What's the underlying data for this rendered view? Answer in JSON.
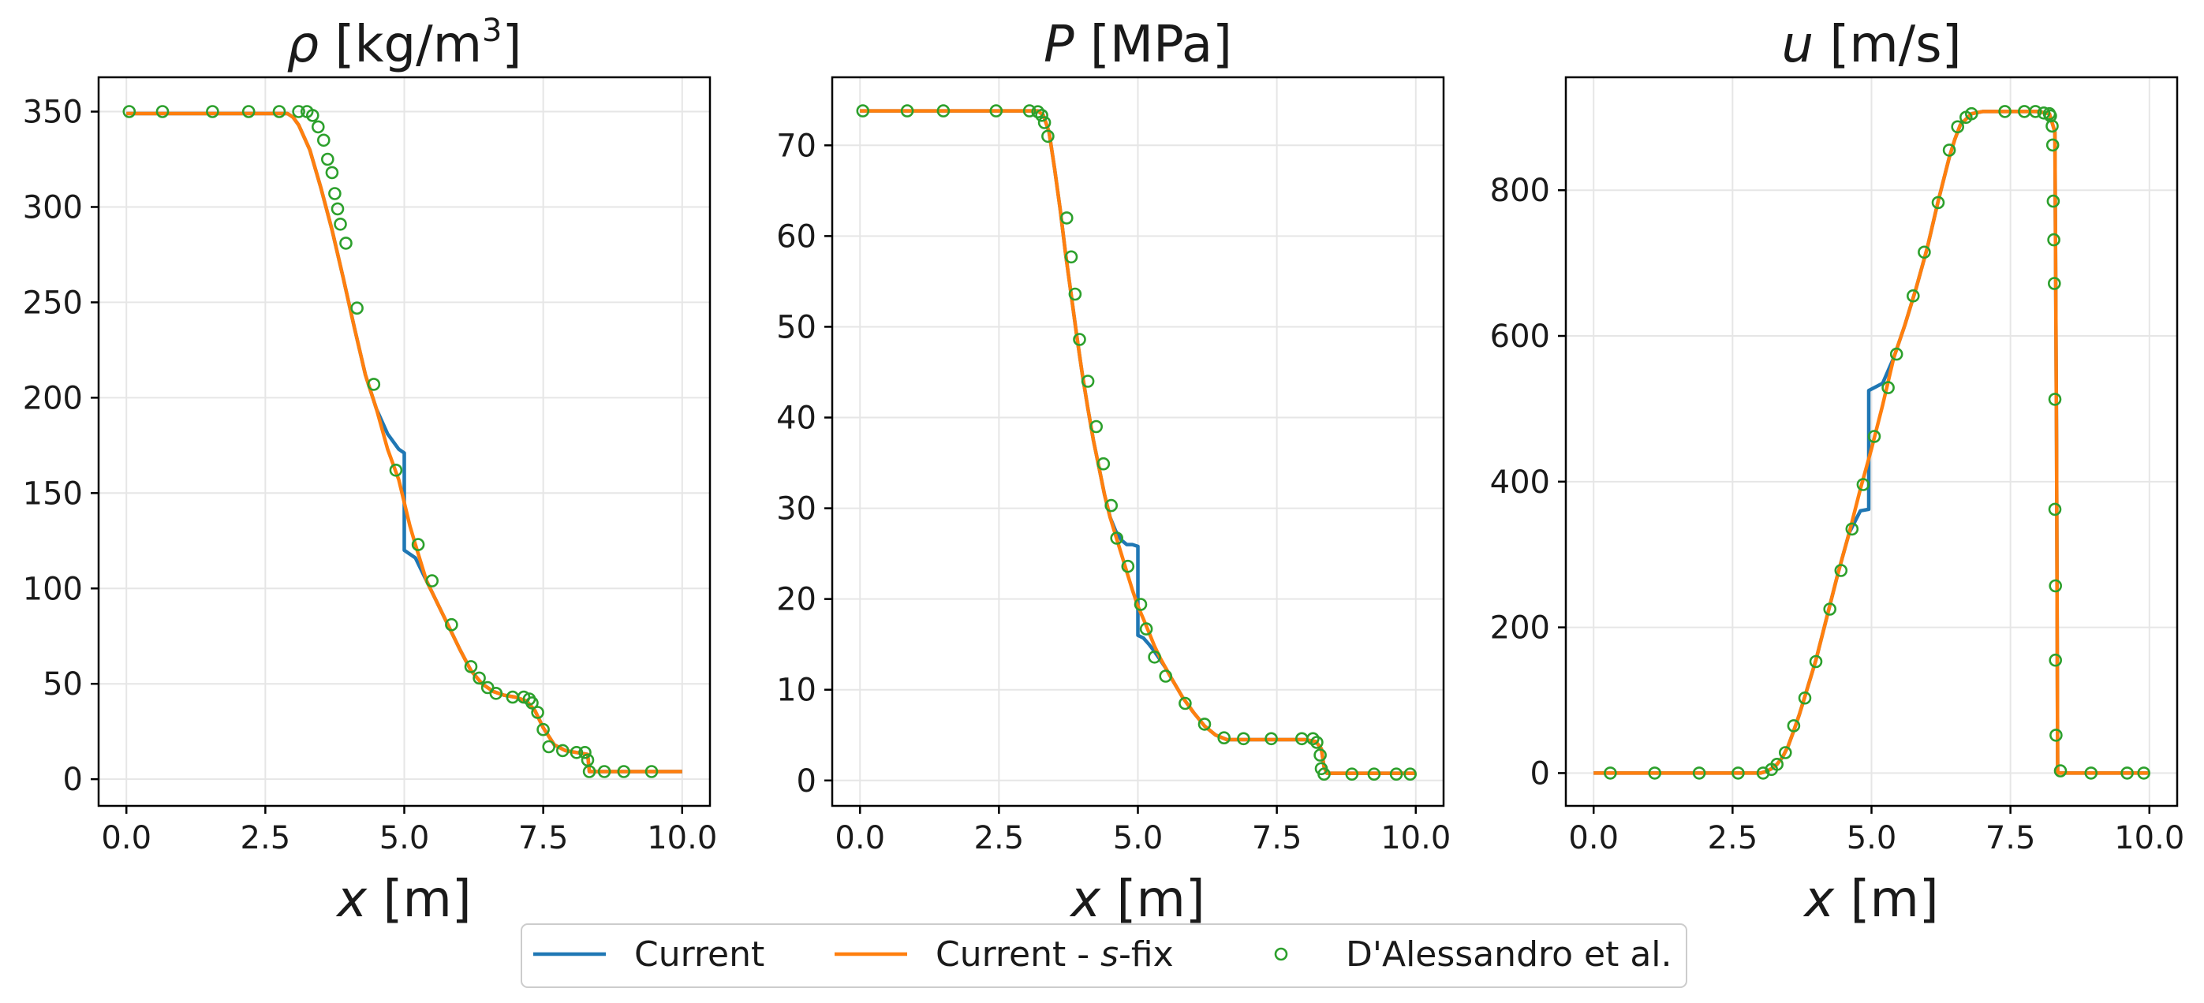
{
  "chart_data": [
    {
      "type": "line",
      "title": {
        "symbol": "ρ",
        "unit": "[kg/m",
        "sup": "3",
        "close": "]"
      },
      "xlabel": {
        "symbol": "x",
        "unit": "[m]"
      },
      "xlim": [
        -0.5,
        10.5
      ],
      "ylim": [
        -14,
        368
      ],
      "xticks": [
        0,
        2.5,
        5,
        7.5,
        10
      ],
      "xticklabels": [
        "0.0",
        "2.5",
        "5.0",
        "7.5",
        "10.0"
      ],
      "yticks": [
        0,
        50,
        100,
        150,
        200,
        250,
        300,
        350
      ],
      "yticklabels": [
        "0",
        "50",
        "100",
        "150",
        "200",
        "250",
        "300",
        "350"
      ],
      "grid": true,
      "series": [
        {
          "name": "Current",
          "color": "#1f77b4",
          "style": "line",
          "x": [
            0,
            2.9,
            3.0,
            3.1,
            3.3,
            3.5,
            3.7,
            3.9,
            4.1,
            4.3,
            4.5,
            4.7,
            4.9,
            5.0,
            5.0,
            5.2,
            5.4,
            5.6,
            5.8,
            6.0,
            6.2,
            6.4,
            6.6,
            6.8,
            7.0,
            7.2,
            7.35,
            7.5,
            7.7,
            7.9,
            8.1,
            8.3,
            8.33,
            8.4,
            10.0
          ],
          "y": [
            349,
            349,
            347,
            343,
            330,
            310,
            288,
            263,
            237,
            212,
            194,
            181,
            173,
            171,
            120,
            116,
            104,
            92,
            80,
            68,
            57,
            50,
            46,
            44,
            43,
            41,
            36,
            27,
            18,
            15,
            14,
            13,
            4,
            4,
            4
          ]
        },
        {
          "name": "Current - s-fix",
          "color": "#ff7f0e",
          "style": "line",
          "x": [
            0,
            2.9,
            3.0,
            3.1,
            3.3,
            3.5,
            3.7,
            3.9,
            4.1,
            4.3,
            4.5,
            4.7,
            4.9,
            5.0,
            5.1,
            5.2,
            5.4,
            5.6,
            5.8,
            6.0,
            6.2,
            6.4,
            6.6,
            6.8,
            7.0,
            7.2,
            7.35,
            7.5,
            7.7,
            7.9,
            8.1,
            8.3,
            8.33,
            8.4,
            10.0
          ],
          "y": [
            349,
            349,
            347,
            343,
            330,
            310,
            288,
            263,
            237,
            212,
            194,
            173,
            157,
            145,
            133,
            123,
            104,
            92,
            80,
            68,
            57,
            50,
            46,
            44,
            43,
            41,
            36,
            27,
            18,
            15,
            14,
            13,
            4,
            4,
            4
          ]
        },
        {
          "name": "D'Alessandro et al.",
          "color": "#2ca02c",
          "style": "markers",
          "x": [
            0.05,
            0.65,
            1.55,
            2.2,
            2.75,
            3.1,
            3.25,
            3.35,
            3.45,
            3.55,
            3.62,
            3.7,
            3.75,
            3.8,
            3.85,
            3.95,
            4.15,
            4.45,
            4.85,
            5.25,
            5.5,
            5.85,
            6.2,
            6.35,
            6.5,
            6.65,
            6.95,
            7.15,
            7.25,
            7.3,
            7.4,
            7.5,
            7.6,
            7.85,
            8.1,
            8.25,
            8.3,
            8.33,
            8.6,
            8.95,
            9.45
          ],
          "y": [
            350,
            350,
            350,
            350,
            350,
            350,
            350,
            348,
            342,
            335,
            325,
            318,
            307,
            299,
            291,
            281,
            247,
            207,
            162,
            123,
            104,
            81,
            59,
            53,
            48,
            45,
            43,
            43,
            42,
            40,
            35,
            26,
            17,
            15,
            14,
            14,
            10,
            4,
            4,
            4,
            4
          ]
        }
      ]
    },
    {
      "type": "line",
      "title": {
        "symbol": "P",
        "unit": "[MPa]"
      },
      "xlabel": {
        "symbol": "x",
        "unit": "[m]"
      },
      "xlim": [
        -0.5,
        10.5
      ],
      "ylim": [
        -2.8,
        77.5
      ],
      "xticks": [
        0,
        2.5,
        5,
        7.5,
        10
      ],
      "xticklabels": [
        "0.0",
        "2.5",
        "5.0",
        "7.5",
        "10.0"
      ],
      "yticks": [
        0,
        10,
        20,
        30,
        40,
        50,
        60,
        70
      ],
      "yticklabels": [
        "0",
        "10",
        "20",
        "30",
        "40",
        "50",
        "60",
        "70"
      ],
      "grid": true,
      "series": [
        {
          "name": "Current",
          "color": "#1f77b4",
          "style": "line",
          "x": [
            0,
            3.2,
            3.3,
            3.4,
            3.5,
            3.6,
            3.7,
            3.8,
            3.9,
            4.0,
            4.1,
            4.2,
            4.3,
            4.4,
            4.5,
            4.6,
            4.7,
            4.8,
            4.9,
            5.0,
            5.0,
            5.1,
            5.2,
            5.3,
            5.4,
            5.5,
            5.6,
            5.8,
            6.0,
            6.2,
            6.4,
            6.6,
            7.0,
            7.5,
            8.0,
            8.2,
            8.3,
            8.35,
            8.4,
            10.0
          ],
          "y": [
            73.8,
            73.8,
            73.3,
            71.5,
            67.5,
            63,
            58,
            53.5,
            49,
            44.8,
            41,
            37.5,
            34.5,
            31.5,
            29,
            27.5,
            26.5,
            26,
            26,
            25.8,
            16,
            15.7,
            15,
            14.2,
            13.3,
            12.4,
            11.3,
            9.2,
            7.5,
            6.0,
            5.0,
            4.5,
            4.5,
            4.5,
            4.5,
            4.3,
            3.5,
            1.5,
            0.8,
            0.8
          ]
        },
        {
          "name": "Current - s-fix",
          "color": "#ff7f0e",
          "style": "line",
          "x": [
            0,
            3.2,
            3.3,
            3.4,
            3.5,
            3.6,
            3.7,
            3.8,
            3.9,
            4.0,
            4.1,
            4.2,
            4.3,
            4.4,
            4.5,
            4.6,
            4.7,
            4.8,
            4.9,
            5.0,
            5.1,
            5.2,
            5.3,
            5.4,
            5.5,
            5.6,
            5.8,
            6.0,
            6.2,
            6.4,
            6.6,
            7.0,
            7.5,
            8.0,
            8.2,
            8.3,
            8.35,
            8.4,
            10.0
          ],
          "y": [
            73.8,
            73.8,
            73.3,
            71.5,
            67.5,
            63,
            58,
            53.5,
            49,
            44.8,
            41,
            37.5,
            34.5,
            31.5,
            29,
            27,
            25,
            23,
            21,
            19.2,
            17.8,
            16.3,
            14.8,
            13.5,
            12.4,
            11.3,
            9.2,
            7.5,
            6.0,
            5.0,
            4.5,
            4.5,
            4.5,
            4.5,
            4.3,
            3.5,
            1.5,
            0.8,
            0.8
          ]
        },
        {
          "name": "D'Alessandro et al.",
          "color": "#2ca02c",
          "style": "markers",
          "x": [
            0.05,
            0.85,
            1.5,
            2.45,
            3.05,
            3.2,
            3.27,
            3.32,
            3.38,
            3.72,
            3.8,
            3.87,
            3.95,
            4.1,
            4.25,
            4.38,
            4.52,
            4.62,
            4.82,
            5.05,
            5.15,
            5.3,
            5.5,
            5.85,
            6.2,
            6.55,
            6.9,
            7.4,
            7.95,
            8.15,
            8.22,
            8.28,
            8.3,
            8.35,
            8.85,
            9.25,
            9.65,
            9.9
          ],
          "y": [
            73.8,
            73.8,
            73.8,
            73.8,
            73.8,
            73.7,
            73.3,
            72.5,
            71,
            62,
            57.7,
            53.6,
            48.6,
            44,
            39,
            34.9,
            30.3,
            26.7,
            23.6,
            19.4,
            16.7,
            13.6,
            11.5,
            8.5,
            6.2,
            4.7,
            4.6,
            4.6,
            4.6,
            4.6,
            4.2,
            2.8,
            1.3,
            0.7,
            0.7,
            0.7,
            0.7,
            0.7
          ]
        }
      ]
    },
    {
      "type": "line",
      "title": {
        "symbol": "u",
        "unit": "[m/s]"
      },
      "xlabel": {
        "symbol": "x",
        "unit": "[m]"
      },
      "xlim": [
        -0.5,
        10.5
      ],
      "ylim": [
        -45,
        955
      ],
      "xticks": [
        0,
        2.5,
        5,
        7.5,
        10
      ],
      "xticklabels": [
        "0.0",
        "2.5",
        "5.0",
        "7.5",
        "10.0"
      ],
      "yticks": [
        0,
        200,
        400,
        600,
        800
      ],
      "yticklabels": [
        "0",
        "200",
        "400",
        "600",
        "800"
      ],
      "grid": true,
      "series": [
        {
          "name": "Current",
          "color": "#1f77b4",
          "style": "line",
          "x": [
            0,
            3.0,
            3.1,
            3.2,
            3.3,
            3.4,
            3.5,
            3.6,
            3.7,
            3.8,
            3.9,
            4.0,
            4.2,
            4.4,
            4.6,
            4.8,
            4.95,
            4.95,
            5.2,
            5.4,
            5.6,
            5.8,
            6.0,
            6.2,
            6.4,
            6.5,
            6.6,
            6.8,
            7.0,
            7.5,
            8.0,
            8.2,
            8.3,
            8.33,
            8.35,
            10.0
          ],
          "y": [
            0,
            0,
            2,
            6,
            12,
            22,
            37,
            58,
            80,
            105,
            130,
            155,
            215,
            275,
            330,
            360,
            362,
            525,
            535,
            570,
            615,
            665,
            720,
            785,
            845,
            870,
            890,
            905,
            908,
            908,
            908,
            905,
            880,
            450,
            0,
            0
          ]
        },
        {
          "name": "Current - s-fix",
          "color": "#ff7f0e",
          "style": "line",
          "x": [
            0,
            3.0,
            3.1,
            3.2,
            3.3,
            3.4,
            3.5,
            3.6,
            3.7,
            3.8,
            3.9,
            4.0,
            4.2,
            4.4,
            4.6,
            4.8,
            5.0,
            5.2,
            5.4,
            5.6,
            5.8,
            6.0,
            6.2,
            6.4,
            6.5,
            6.6,
            6.8,
            7.0,
            7.5,
            8.0,
            8.2,
            8.3,
            8.33,
            8.35,
            10.0
          ],
          "y": [
            0,
            0,
            2,
            6,
            12,
            22,
            37,
            58,
            80,
            105,
            130,
            155,
            215,
            275,
            330,
            390,
            445,
            505,
            570,
            615,
            665,
            720,
            785,
            845,
            870,
            890,
            905,
            908,
            908,
            908,
            905,
            880,
            450,
            0,
            0
          ]
        },
        {
          "name": "D'Alessandro et al.",
          "color": "#2ca02c",
          "style": "markers",
          "x": [
            0.3,
            1.1,
            1.9,
            2.6,
            3.05,
            3.2,
            3.3,
            3.45,
            3.6,
            3.8,
            4.0,
            4.25,
            4.45,
            4.65,
            4.85,
            5.05,
            5.3,
            5.45,
            5.75,
            5.95,
            6.2,
            6.4,
            6.55,
            6.7,
            6.8,
            7.4,
            7.75,
            7.95,
            8.1,
            8.2,
            8.22,
            8.25,
            8.26,
            8.27,
            8.28,
            8.29,
            8.3,
            8.3,
            8.31,
            8.31,
            8.32,
            8.4,
            8.95,
            9.6,
            9.9
          ],
          "y": [
            0,
            0,
            0,
            0,
            0,
            5,
            12,
            28,
            65,
            103,
            153,
            225,
            278,
            335,
            396,
            462,
            529,
            575,
            655,
            715,
            783,
            855,
            887,
            900,
            905,
            908,
            908,
            908,
            906,
            905,
            902,
            888,
            862,
            785,
            732,
            672,
            513,
            362,
            257,
            155,
            52,
            3,
            0,
            0,
            0
          ]
        }
      ]
    }
  ],
  "legend": {
    "items": [
      {
        "label_pre": "Current",
        "label_italic": "",
        "label_post": "",
        "color": "#1f77b4",
        "kind": "line"
      },
      {
        "label_pre": "Current - ",
        "label_italic": "s",
        "label_post": "-fix",
        "color": "#ff7f0e",
        "kind": "line"
      },
      {
        "label_pre": "D'Alessandro et al.",
        "label_italic": "",
        "label_post": "",
        "color": "#2ca02c",
        "kind": "marker"
      }
    ]
  }
}
